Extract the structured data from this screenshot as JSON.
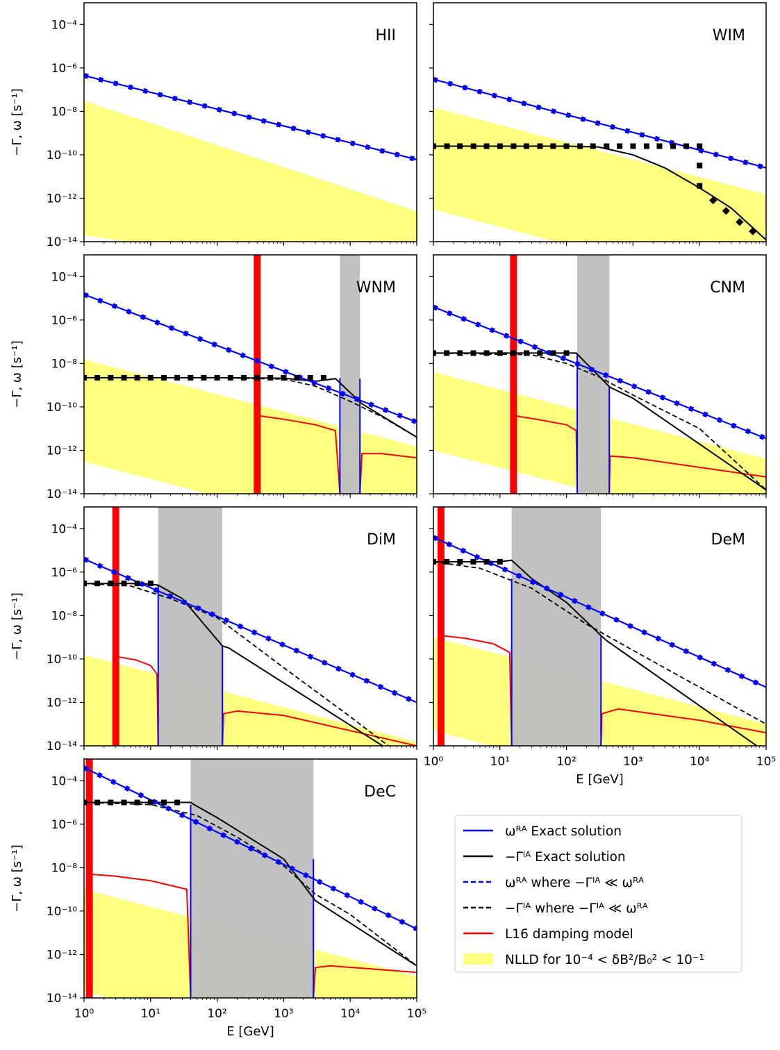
{
  "figure": {
    "ylabel": "−Γ, ω [s⁻¹]",
    "xlabel": "E [GeV]",
    "x_ticks": [
      {
        "value": 1,
        "label": "10⁰"
      },
      {
        "value": 10,
        "label": "10¹"
      },
      {
        "value": 100,
        "label": "10²"
      },
      {
        "value": 1000,
        "label": "10³"
      },
      {
        "value": 10000,
        "label": "10⁴"
      },
      {
        "value": 100000,
        "label": "10⁵"
      }
    ],
    "y_ticks": [
      {
        "value": 0.0001,
        "label": "10⁻⁴"
      },
      {
        "value": 1e-06,
        "label": "10⁻⁶"
      },
      {
        "value": 1e-08,
        "label": "10⁻⁸"
      },
      {
        "value": 1e-10,
        "label": "10⁻¹⁰"
      },
      {
        "value": 1e-12,
        "label": "10⁻¹²"
      },
      {
        "value": 1e-14,
        "label": "10⁻¹⁴"
      }
    ],
    "colors": {
      "omega_exact": "#0000ff",
      "gamma_exact": "#000000",
      "l16": "#ff0000",
      "nlld": "#ffff80",
      "gap": "#bebebe",
      "cutoff": "#ff0000"
    }
  },
  "legend": [
    {
      "key": "omega_exact",
      "label": "ωᴿᴬ Exact solution"
    },
    {
      "key": "gamma_exact",
      "label": "−Γᴵᴬ Exact solution"
    },
    {
      "key": "omega_approx",
      "label": "ωᴿᴬ where −Γᴵᴬ ≪ ωᴿᴬ"
    },
    {
      "key": "gamma_approx",
      "label": "−Γᴵᴬ where −Γᴵᴬ ≪ ωᴿᴬ"
    },
    {
      "key": "l16",
      "label": "L16 damping model"
    },
    {
      "key": "nlld",
      "label": "NLLD for 10⁻⁴ < δB²/B₀² < 10⁻¹"
    }
  ],
  "chart_data": [
    {
      "type": "line",
      "name": "HII",
      "xlim": [
        1,
        100000
      ],
      "ylim": [
        1e-14,
        0.001
      ],
      "xscale": "log",
      "yscale": "log",
      "series": [
        {
          "key": "omega_exact",
          "x": [
            1,
            100000
          ],
          "y": [
            4.5e-07,
            6e-11
          ]
        }
      ],
      "nlld_band": {
        "x": [
          1,
          100000
        ],
        "upper": [
          3e-08,
          2.5e-13
        ],
        "lower": [
          2e-14,
          1e-16
        ]
      }
    },
    {
      "type": "line",
      "name": "WIM",
      "xlim": [
        1,
        100000
      ],
      "ylim": [
        1e-14,
        0.001
      ],
      "xscale": "log",
      "yscale": "log",
      "series": [
        {
          "key": "omega_exact",
          "x": [
            1,
            100000
          ],
          "y": [
            3e-07,
            2.5e-11
          ]
        },
        {
          "key": "gamma_exact",
          "x": [
            1,
            10,
            100,
            300,
            1000,
            3000,
            10000,
            30000,
            100000
          ],
          "y": [
            2.5e-10,
            2.5e-10,
            2.5e-10,
            2.3e-10,
            1e-10,
            2.5e-11,
            3e-12,
            3.5e-13,
            1.2e-14
          ]
        },
        {
          "key": "gamma_markers_square",
          "x": [
            1,
            1.6,
            2.5,
            4,
            6.3,
            10,
            16,
            25,
            40,
            63,
            100,
            160,
            250,
            400,
            630,
            1000,
            1600,
            2500,
            4000,
            6300,
            10000,
            10000,
            10000
          ],
          "y": [
            2.5e-10,
            2.5e-10,
            2.5e-10,
            2.5e-10,
            2.5e-10,
            2.5e-10,
            2.5e-10,
            2.5e-10,
            2.5e-10,
            2.5e-10,
            2.5e-10,
            2.5e-10,
            2.5e-10,
            2.5e-10,
            2.5e-10,
            2.5e-10,
            2.5e-10,
            2.5e-10,
            2.5e-10,
            2.5e-10,
            2.5e-10,
            3.2e-11,
            3.7e-12
          ]
        },
        {
          "key": "gamma_markers_diamond",
          "x": [
            16000,
            25000,
            40000,
            63000
          ],
          "y": [
            8e-13,
            2.6e-13,
            8e-14,
            3e-14
          ]
        }
      ],
      "nlld_band": {
        "x": [
          1,
          100000
        ],
        "upper": [
          1.5e-08,
          1.5e-12
        ],
        "lower": [
          3e-13,
          3e-17
        ]
      }
    },
    {
      "type": "line",
      "name": "WNM",
      "xlim": [
        1,
        100000
      ],
      "ylim": [
        1e-14,
        0.001
      ],
      "xscale": "log",
      "yscale": "log",
      "series": [
        {
          "key": "omega_exact",
          "x": [
            1,
            100000
          ],
          "y": [
            1.5e-05,
            2e-11
          ]
        },
        {
          "key": "gamma_exact",
          "x": [
            1,
            10,
            100,
            1000,
            3000,
            6000,
            15000,
            100000
          ],
          "y": [
            2.2e-09,
            2.2e-09,
            2.2e-09,
            2.1e-09,
            1.5e-09,
            2e-09,
            1.4e-10,
            4e-12
          ]
        },
        {
          "key": "gamma_approx",
          "x": [
            1,
            100,
            1000,
            3000,
            10000,
            30000,
            100000
          ],
          "y": [
            2.2e-09,
            2.2e-09,
            1.9e-09,
            9e-10,
            1.8e-10,
            3.5e-11,
            4e-12
          ]
        },
        {
          "key": "l16",
          "x": [
            400,
            1000,
            3000,
            6000,
            7000
          ],
          "y": [
            4e-11,
            2.7e-11,
            1.5e-11,
            8e-12,
            1e-14
          ]
        },
        {
          "key": "l16",
          "x": [
            14000,
            15000,
            30000,
            100000
          ],
          "y": [
            1e-14,
            7e-13,
            7e-13,
            4.5e-13
          ]
        }
      ],
      "cutoff_energy": 400,
      "gap": [
        7000,
        14000
      ],
      "nlld_band": {
        "x": [
          1,
          100000
        ],
        "upper": [
          1.5e-08,
          1.5e-12
        ],
        "lower": [
          3e-13,
          3e-17
        ]
      }
    },
    {
      "type": "line",
      "name": "CNM",
      "xlim": [
        1,
        100000
      ],
      "ylim": [
        1e-14,
        0.001
      ],
      "xscale": "log",
      "yscale": "log",
      "series": [
        {
          "key": "omega_exact",
          "x": [
            1,
            100000
          ],
          "y": [
            4e-06,
            3.5e-12
          ]
        },
        {
          "key": "gamma_exact",
          "x": [
            1,
            10,
            50,
            140,
            200,
            450,
            1000,
            100000
          ],
          "y": [
            3e-08,
            3e-08,
            3e-08,
            3e-08,
            1e-08,
            8e-10,
            2.5e-10,
            1.5e-14
          ]
        },
        {
          "key": "gamma_approx",
          "x": [
            1,
            30,
            100,
            300,
            1000,
            10000,
            100000
          ],
          "y": [
            3e-08,
            2.5e-08,
            1e-08,
            2.5e-09,
            3.5e-10,
            1e-11,
            1.5e-14
          ]
        },
        {
          "key": "l16",
          "x": [
            16,
            40,
            100,
            140,
            145
          ],
          "y": [
            4e-11,
            2.5e-11,
            1.5e-11,
            8e-12,
            1e-14
          ]
        },
        {
          "key": "l16",
          "x": [
            440,
            450,
            1000,
            100000
          ],
          "y": [
            1e-14,
            5.5e-13,
            4.5e-13,
            6e-14
          ]
        }
      ],
      "cutoff_energy": 16,
      "gap": [
        145,
        440
      ],
      "nlld_band": {
        "x": [
          1,
          100000
        ],
        "upper": [
          4e-09,
          4e-13
        ],
        "lower": [
          1e-12,
          1e-16
        ]
      }
    },
    {
      "type": "line",
      "name": "DiM",
      "xlim": [
        1,
        100000
      ],
      "ylim": [
        1e-14,
        0.001
      ],
      "xscale": "log",
      "yscale": "log",
      "series": [
        {
          "key": "omega_exact",
          "x": [
            1,
            100000
          ],
          "y": [
            4e-06,
            1e-12
          ]
        },
        {
          "key": "gamma_exact",
          "x": [
            1,
            5,
            10,
            13,
            30,
            120,
            150,
            100000
          ],
          "y": [
            3e-07,
            3e-07,
            2.8e-07,
            2.5e-07,
            6e-08,
            4e-10,
            3.2e-10,
            1e-15
          ]
        },
        {
          "key": "gamma_approx",
          "x": [
            1,
            5,
            20,
            100,
            1000,
            10000,
            100000
          ],
          "y": [
            3e-07,
            2.3e-07,
            6e-08,
            8e-09,
            4e-11,
            2.2e-13,
            1e-15
          ]
        },
        {
          "key": "l16",
          "x": [
            3,
            6,
            10,
            12.5,
            13
          ],
          "y": [
            1.3e-10,
            9e-11,
            5e-11,
            2e-11,
            1e-14
          ]
        },
        {
          "key": "l16",
          "x": [
            120,
            125,
            200,
            1000,
            100000
          ],
          "y": [
            1e-14,
            3e-13,
            4e-13,
            2.5e-13,
            1e-14
          ]
        }
      ],
      "cutoff_energy": 3,
      "gap": [
        13,
        120
      ],
      "nlld_band": {
        "x": [
          1,
          100000
        ],
        "upper": [
          1.5e-10,
          1.5e-14
        ],
        "lower": [
          1e-14,
          1e-18
        ]
      }
    },
    {
      "type": "line",
      "name": "DeM",
      "xlim": [
        1,
        100000
      ],
      "ylim": [
        1e-14,
        0.001
      ],
      "xscale": "log",
      "yscale": "log",
      "series": [
        {
          "key": "omega_exact",
          "x": [
            1,
            100000
          ],
          "y": [
            4e-05,
            5e-12
          ]
        },
        {
          "key": "gamma_exact",
          "x": [
            1,
            10,
            15,
            30,
            100,
            330,
            400,
            100000
          ],
          "y": [
            3e-06,
            3e-06,
            3.5e-06,
            5e-07,
            4e-08,
            1.2e-09,
            7e-10,
            5e-15
          ]
        },
        {
          "key": "gamma_approx",
          "x": [
            1,
            5,
            30,
            200,
            1000,
            10000,
            100000
          ],
          "y": [
            3e-06,
            1.5e-06,
            1.8e-07,
            4e-09,
            2.5e-10,
            5e-12,
            1e-13
          ]
        },
        {
          "key": "l16",
          "x": [
            1.3,
            3,
            8,
            14,
            15
          ],
          "y": [
            1.2e-09,
            9e-10,
            5e-10,
            2e-10,
            1e-14
          ]
        },
        {
          "key": "l16",
          "x": [
            330,
            340,
            600,
            10000,
            100000
          ],
          "y": [
            1e-14,
            3e-13,
            5e-13,
            1.5e-13,
            4e-14
          ]
        }
      ],
      "cutoff_energy": 1.3,
      "gap": [
        15,
        330
      ],
      "nlld_band": {
        "x": [
          1,
          100000
        ],
        "upper": [
          1e-09,
          1e-13
        ],
        "lower": [
          5e-14,
          5e-18
        ]
      }
    },
    {
      "type": "line",
      "name": "DeC",
      "xlim": [
        1,
        100000
      ],
      "ylim": [
        1e-14,
        0.001
      ],
      "xscale": "log",
      "yscale": "log",
      "series": [
        {
          "key": "omega_exact",
          "x": [
            1,
            100000
          ],
          "y": [
            0.0004,
            1.5e-11
          ]
        },
        {
          "key": "gamma_exact",
          "x": [
            1,
            10,
            40,
            45,
            100,
            1000,
            3000,
            100000
          ],
          "y": [
            1e-05,
            1e-05,
            1e-05,
            8e-06,
            2e-06,
            2.5e-08,
            3e-10,
            3e-13
          ]
        },
        {
          "key": "gamma_approx",
          "x": [
            1,
            10,
            50,
            200,
            1000,
            3000,
            10000,
            100000
          ],
          "y": [
            1e-05,
            8e-06,
            2.5e-06,
            2.5e-07,
            1.2e-08,
            6e-10,
            7e-11,
            3e-13
          ]
        },
        {
          "key": "l16",
          "x": [
            1.2,
            3,
            10,
            35,
            40
          ],
          "y": [
            5e-09,
            4e-09,
            2.5e-09,
            1e-09,
            1e-14
          ]
        },
        {
          "key": "l16",
          "x": [
            2800,
            3000,
            5000,
            100000
          ],
          "y": [
            1e-14,
            2.5e-13,
            3e-13,
            1.5e-13
          ]
        }
      ],
      "cutoff_energy": 1.2,
      "gap": [
        40,
        2800
      ],
      "nlld_band": {
        "x": [
          1,
          100000
        ],
        "upper": [
          1e-09,
          1e-13
        ],
        "lower": [
          2e-14,
          2e-18
        ]
      }
    }
  ]
}
